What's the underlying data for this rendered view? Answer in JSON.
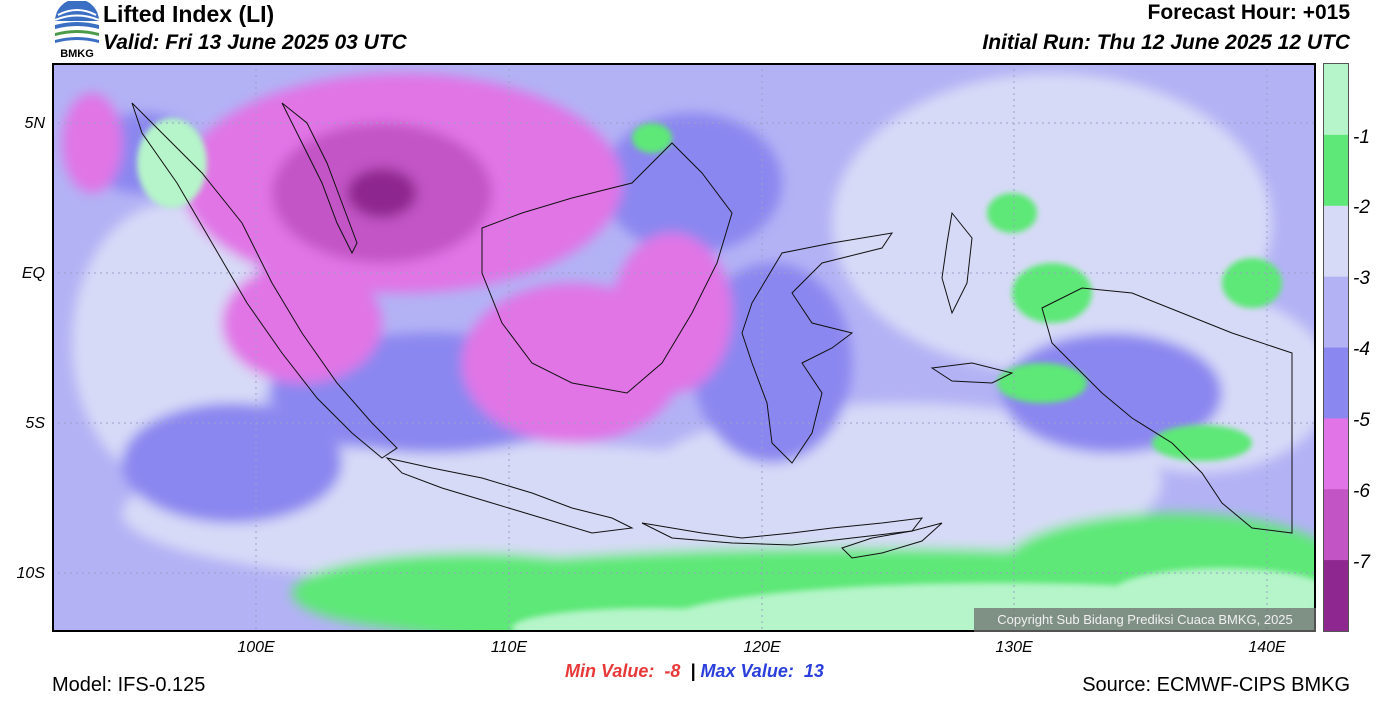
{
  "header": {
    "title": "Lifted Index (LI)",
    "valid": "Valid: Fri 13 June 2025 03 UTC",
    "forecast_hour": "Forecast Hour: +015",
    "initial_run": "Initial Run: Thu 12 June 2025 12 UTC",
    "logo_text": "BMKG"
  },
  "axes": {
    "y_ticks": [
      "5N",
      "EQ",
      "5S",
      "10S"
    ],
    "x_ticks": [
      "100E",
      "110E",
      "120E",
      "130E",
      "140E"
    ]
  },
  "legend": {
    "labels": [
      "-1",
      "-2",
      "-3",
      "-4",
      "-5",
      "-6",
      "-7"
    ],
    "colors": [
      "#b5f5c9",
      "#5de877",
      "#d7daf7",
      "#b3b2f5",
      "#8b87f0",
      "#e174e6",
      "#c354c6",
      "#8e2790"
    ]
  },
  "stats": {
    "min_label": "Min Value:",
    "min_value": "-8",
    "separator": "|",
    "max_label": "Max Value:",
    "max_value": "13"
  },
  "footer": {
    "model": "Model: IFS-0.125",
    "source": "Source: ECMWF-CIPS BMKG",
    "copyright": "Copyright Sub Bidang Prediksi Cuaca BMKG, 2025"
  }
}
